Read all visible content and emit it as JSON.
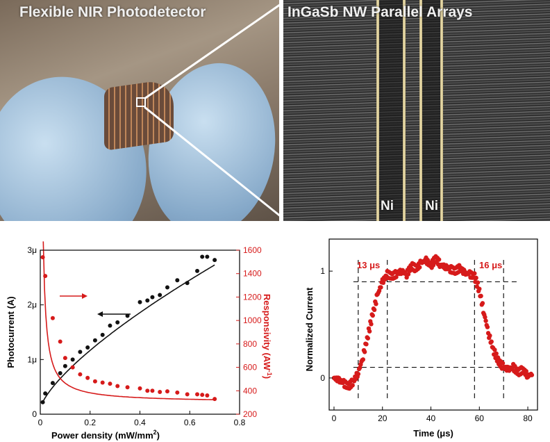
{
  "photos": {
    "left_title": "Flexible NIR Photodetector",
    "right_title": "InGaSb NW Parallel Arrays",
    "electrode_labels": [
      "Ni",
      "Ni"
    ]
  },
  "colors": {
    "black_series": "#111111",
    "red_series": "#d61a1a",
    "axis": "#000000"
  },
  "chart_data": [
    {
      "type": "scatter",
      "xlabel": "Power density (mW/mm",
      "xlabel_superscript": "2",
      "xlabel_close": ")",
      "ylabel": "Photocurrent (A)",
      "y2label": "Responsivity (AW",
      "y2label_superscript": "-1",
      "y2label_close": ")",
      "xlim": [
        0,
        0.8
      ],
      "ylim": [
        0,
        3e-06
      ],
      "y2lim": [
        200,
        1600
      ],
      "xticks": [
        "0",
        "0.2",
        "0.4",
        "0.6",
        "0.8"
      ],
      "xtick_values": [
        0,
        0.2,
        0.4,
        0.6,
        0.8
      ],
      "yticks": [
        "0",
        "1μ",
        "2μ",
        "3μ"
      ],
      "ytick_values": [
        0,
        1e-06,
        2e-06,
        3e-06
      ],
      "y2ticks": [
        "200",
        "400",
        "600",
        "800",
        "1000",
        "1200",
        "1400",
        "1600"
      ],
      "y2tick_values": [
        200,
        400,
        600,
        800,
        1000,
        1200,
        1400,
        1600
      ],
      "series": [
        {
          "axis": "left",
          "x": [
            0.01,
            0.02,
            0.05,
            0.08,
            0.1,
            0.13,
            0.16,
            0.19,
            0.22,
            0.25,
            0.28,
            0.31,
            0.35,
            0.4,
            0.43,
            0.45,
            0.48,
            0.51,
            0.55,
            0.59,
            0.63,
            0.65,
            0.67,
            0.7
          ],
          "y": [
            2.2e-07,
            3.8e-07,
            5.7e-07,
            7.5e-07,
            8.8e-07,
            1e-06,
            1.14e-06,
            1.22e-06,
            1.35e-06,
            1.45e-06,
            1.62e-06,
            1.68e-06,
            1.8e-06,
            2.05e-06,
            2.08e-06,
            2.14e-06,
            2.18e-06,
            2.32e-06,
            2.45e-06,
            2.4e-06,
            2.62e-06,
            2.88e-06,
            2.88e-06,
            2.82e-06
          ]
        },
        {
          "axis": "right",
          "x": [
            0.01,
            0.02,
            0.05,
            0.08,
            0.1,
            0.13,
            0.16,
            0.19,
            0.22,
            0.25,
            0.28,
            0.31,
            0.35,
            0.4,
            0.43,
            0.45,
            0.48,
            0.51,
            0.55,
            0.59,
            0.63,
            0.65,
            0.67,
            0.7
          ],
          "y": [
            1540,
            1380,
            1020,
            820,
            680,
            600,
            540,
            510,
            480,
            470,
            460,
            440,
            430,
            420,
            400,
            400,
            390,
            395,
            385,
            370,
            370,
            365,
            360,
            330
          ]
        }
      ],
      "arrows": [
        {
          "series": "right",
          "direction": "right"
        },
        {
          "series": "left",
          "direction": "left"
        }
      ]
    },
    {
      "type": "line",
      "xlabel": "Time (μs)",
      "ylabel": "Normalized Current",
      "xlim": [
        -2,
        84
      ],
      "ylim": [
        -0.3,
        1.3
      ],
      "xticks": [
        "0",
        "20",
        "40",
        "60",
        "80"
      ],
      "xtick_values": [
        0,
        20,
        40,
        60,
        80
      ],
      "yticks": [
        "0",
        "1"
      ],
      "ytick_values": [
        0,
        1
      ],
      "annotations": [
        "13 μs",
        "16 μs"
      ],
      "dashed_vertical_x": [
        10,
        22,
        58,
        70
      ],
      "dashed_horizontal_y": [
        0.9,
        0.1
      ],
      "series": [
        {
          "x": [
            0,
            2,
            4,
            6,
            8,
            10,
            12,
            14,
            16,
            18,
            20,
            22,
            24,
            26,
            28,
            30,
            32,
            34,
            36,
            38,
            40,
            42,
            44,
            46,
            48,
            50,
            52,
            54,
            56,
            58,
            60,
            62,
            64,
            66,
            68,
            70,
            72,
            74,
            76,
            78,
            80,
            82
          ],
          "y": [
            0.0,
            -0.02,
            -0.05,
            -0.08,
            -0.03,
            0.05,
            0.2,
            0.4,
            0.6,
            0.78,
            0.9,
            0.97,
            0.95,
            0.98,
            1.0,
            0.97,
            1.05,
            1.02,
            1.08,
            1.1,
            1.05,
            1.12,
            1.06,
            1.04,
            1.02,
            1.0,
            1.03,
            0.98,
            0.97,
            0.95,
            0.82,
            0.6,
            0.4,
            0.25,
            0.15,
            0.1,
            0.08,
            0.1,
            0.05,
            0.08,
            0.02,
            0.04
          ]
        }
      ]
    }
  ]
}
